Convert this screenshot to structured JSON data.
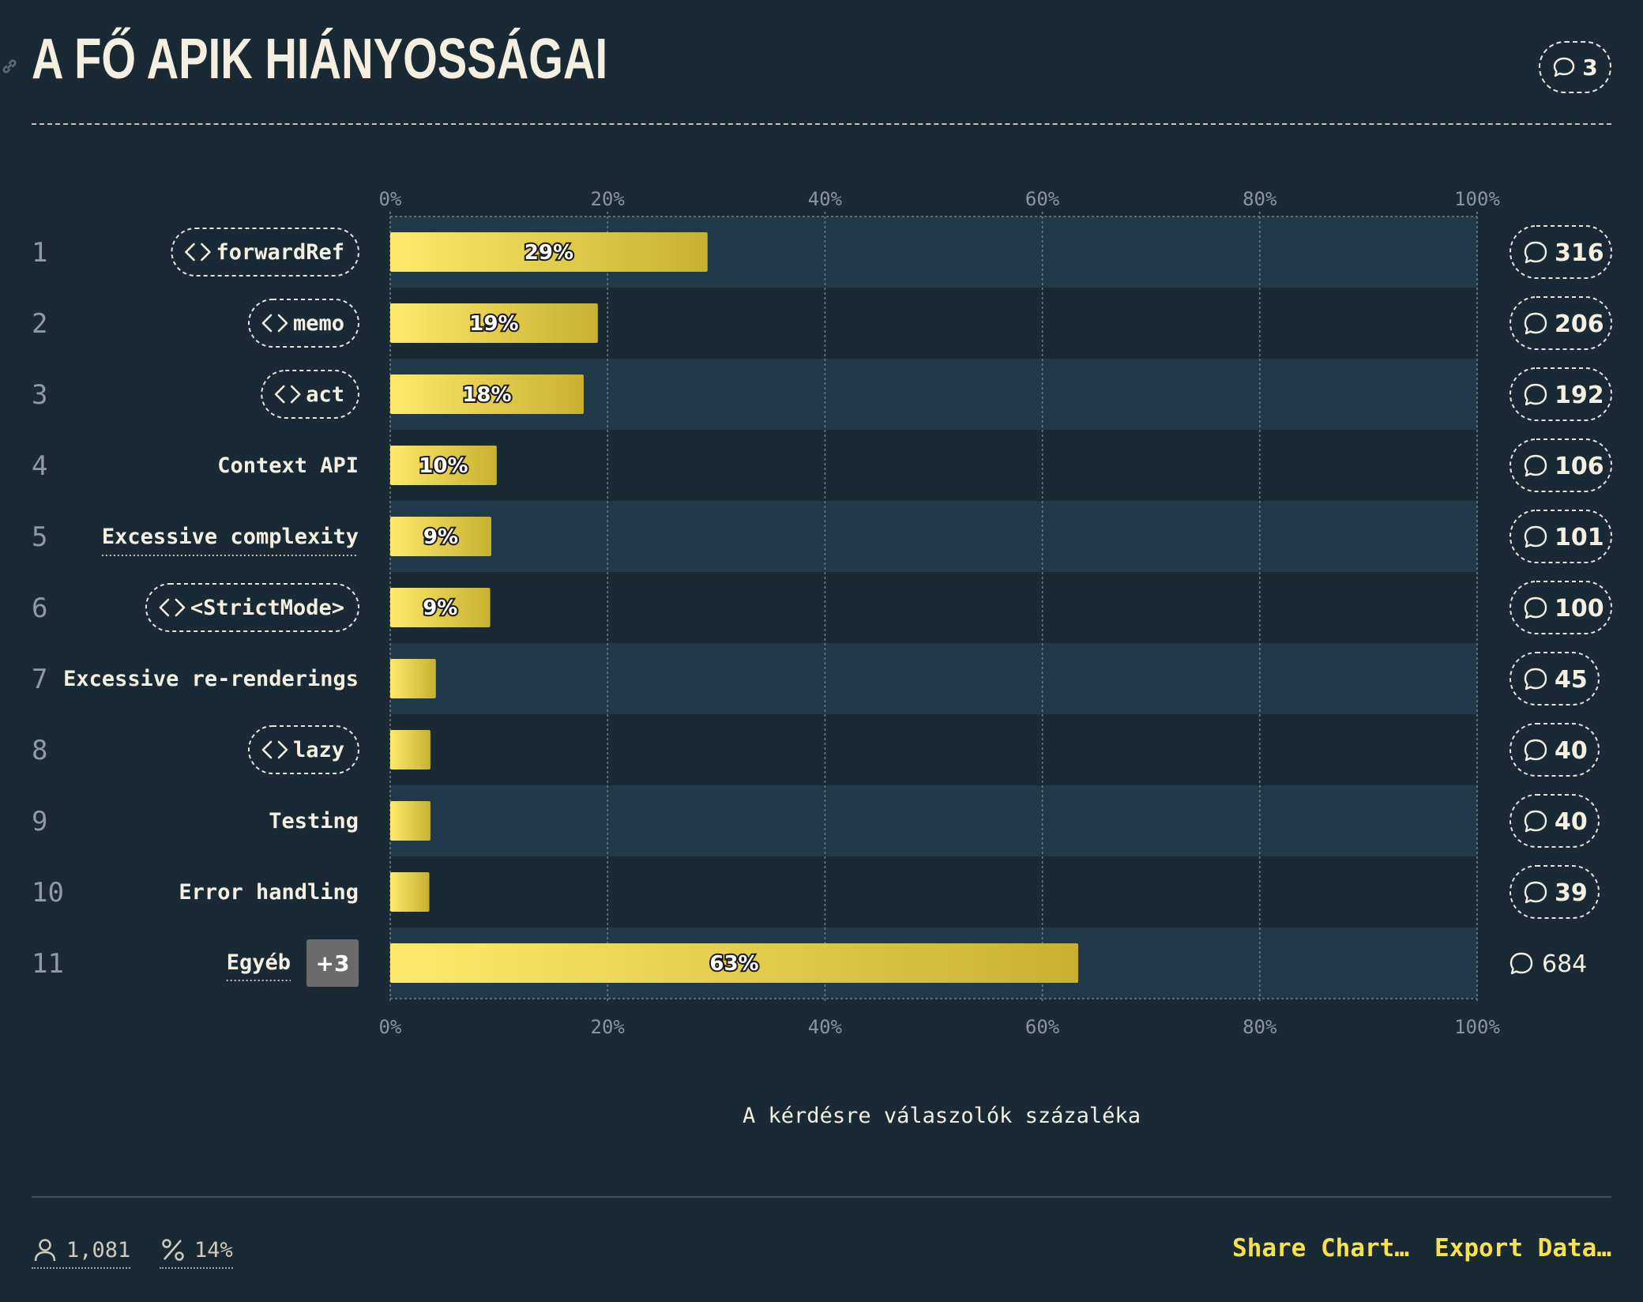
{
  "title": "A FŐ APIK HIÁNYOSSÁGAI",
  "header_comments": "3",
  "colors": {
    "bar_start": "#fde96b",
    "bar_end": "#c8b130",
    "band": "#203a4b",
    "background": "#192a35",
    "accent": "#f7e24a"
  },
  "chart_data": {
    "type": "bar",
    "orientation": "horizontal",
    "categories": [
      "forwardRef",
      "memo",
      "act",
      "Context API",
      "Excessive complexity",
      "<StrictMode>",
      "Excessive re-renderings",
      "lazy",
      "Testing",
      "Error handling",
      "Egyéb"
    ],
    "ranks": [
      "1",
      "2",
      "3",
      "4",
      "5",
      "6",
      "7",
      "8",
      "9",
      "10",
      "11"
    ],
    "values": [
      29.2,
      19.1,
      17.8,
      9.8,
      9.3,
      9.2,
      4.2,
      3.7,
      3.7,
      3.6,
      63.3
    ],
    "value_labels": [
      "29%",
      "19%",
      "18%",
      "10%",
      "9%",
      "9%",
      "",
      "",
      "",
      "",
      "63%"
    ],
    "comment_counts": [
      "316",
      "206",
      "192",
      "106",
      "101",
      "100",
      "45",
      "40",
      "40",
      "39",
      "684"
    ],
    "label_style": [
      "code",
      "code",
      "code",
      "plain",
      "underline",
      "code",
      "plain",
      "code",
      "plain",
      "plain",
      "other"
    ],
    "other_badge": "+3",
    "xlim": [
      0,
      100
    ],
    "xticks": [
      "0%",
      "20%",
      "40%",
      "60%",
      "80%",
      "100%"
    ],
    "xlabel": "A kérdésre válaszolók százaléka",
    "grid": true
  },
  "footer": {
    "respondents": "1,081",
    "percentage": "14%",
    "share_label": "Share Chart…",
    "export_label": "Export Data…"
  }
}
